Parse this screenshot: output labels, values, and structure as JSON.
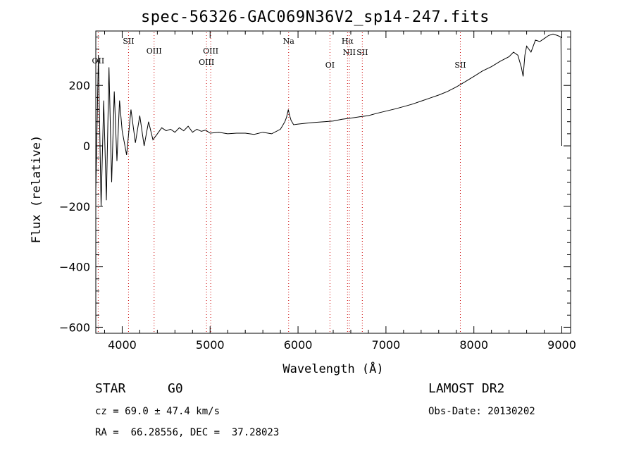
{
  "chart_data": {
    "type": "line",
    "title": "spec-56326-GAC069N36V2_sp14-247.fits",
    "xlabel": "Wavelength (Å)",
    "ylabel": "Flux (relative)",
    "xlim": [
      3700,
      9100
    ],
    "ylim": [
      -620,
      380
    ],
    "xticks": [
      4000,
      5000,
      6000,
      7000,
      8000,
      9000
    ],
    "yticks": [
      -600,
      -400,
      -200,
      0,
      200
    ],
    "grid": false,
    "series": [
      {
        "x": [
          3700,
          3730,
          3760,
          3790,
          3820,
          3850,
          3880,
          3910,
          3940,
          3970,
          4000,
          4050,
          4100,
          4150,
          4200,
          4250,
          4300,
          4350,
          4400,
          4450,
          4500,
          4550,
          4600,
          4650,
          4700,
          4750,
          4800,
          4850,
          4900,
          4950,
          5000,
          5100,
          5200,
          5300,
          5400,
          5500,
          5600,
          5700,
          5800,
          5850,
          5870,
          5890,
          5900,
          5920,
          5950,
          6000,
          6100,
          6200,
          6300,
          6400,
          6500,
          6600,
          6700,
          6800,
          6900,
          7000,
          7100,
          7200,
          7300,
          7400,
          7500,
          7600,
          7700,
          7800,
          7900,
          8000,
          8100,
          8200,
          8300,
          8400,
          8450,
          8500,
          8540,
          8560,
          8580,
          8600,
          8650,
          8700,
          8750,
          8800,
          8850,
          8900,
          8950,
          8990,
          9000
        ],
        "values": [
          -150,
          300,
          -200,
          150,
          -180,
          260,
          -120,
          180,
          -50,
          150,
          50,
          -30,
          120,
          10,
          100,
          0,
          80,
          20,
          40,
          60,
          50,
          55,
          45,
          60,
          50,
          65,
          45,
          55,
          48,
          52,
          42,
          45,
          40,
          42,
          42,
          38,
          45,
          40,
          55,
          80,
          95,
          120,
          105,
          85,
          70,
          72,
          75,
          78,
          80,
          82,
          88,
          92,
          96,
          100,
          108,
          115,
          122,
          130,
          138,
          148,
          158,
          168,
          180,
          195,
          212,
          230,
          248,
          262,
          280,
          295,
          310,
          300,
          260,
          230,
          300,
          330,
          310,
          350,
          345,
          355,
          365,
          370,
          365,
          360,
          0
        ]
      }
    ],
    "line_markers": [
      {
        "label": "OII",
        "wavelength": 3727
      },
      {
        "label": "SII",
        "wavelength": 4072
      },
      {
        "label": "OIII",
        "wavelength": 4363
      },
      {
        "label": "OIII",
        "wavelength": 4959
      },
      {
        "label": "OIII",
        "wavelength": 5007
      },
      {
        "label": "Na",
        "wavelength": 5893
      },
      {
        "label": "OI",
        "wavelength": 6363
      },
      {
        "label": "Hα",
        "wavelength": 6563
      },
      {
        "label": "NII",
        "wavelength": 6583
      },
      {
        "label": "SII",
        "wavelength": 6731
      },
      {
        "label": "SII",
        "wavelength": 7846
      }
    ],
    "colors": {
      "line": "#000000",
      "marker": "#cc0000"
    }
  },
  "info": {
    "class": "STAR",
    "subclass": "G0",
    "survey": "LAMOST DR2",
    "redshift": "cz = 69.0 ± 47.4 km/s",
    "obs_date": "Obs-Date: 20130202",
    "coords": "RA =  66.28556, DEC =  37.28023"
  }
}
